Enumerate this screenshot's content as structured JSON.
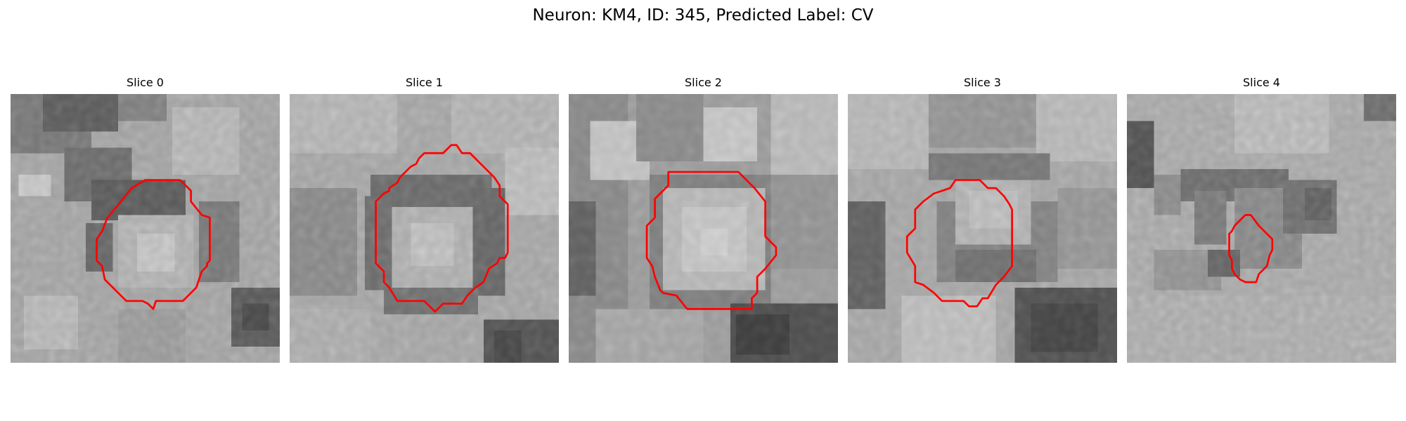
{
  "figure": {
    "title": "Neuron: KM4, ID: 345, Predicted Label: CV"
  },
  "contour_color": "#ff0000",
  "panels": [
    {
      "title": "Slice 0"
    },
    {
      "title": "Slice 1"
    },
    {
      "title": "Slice 2"
    },
    {
      "title": "Slice 3"
    },
    {
      "title": "Slice 4"
    }
  ]
}
